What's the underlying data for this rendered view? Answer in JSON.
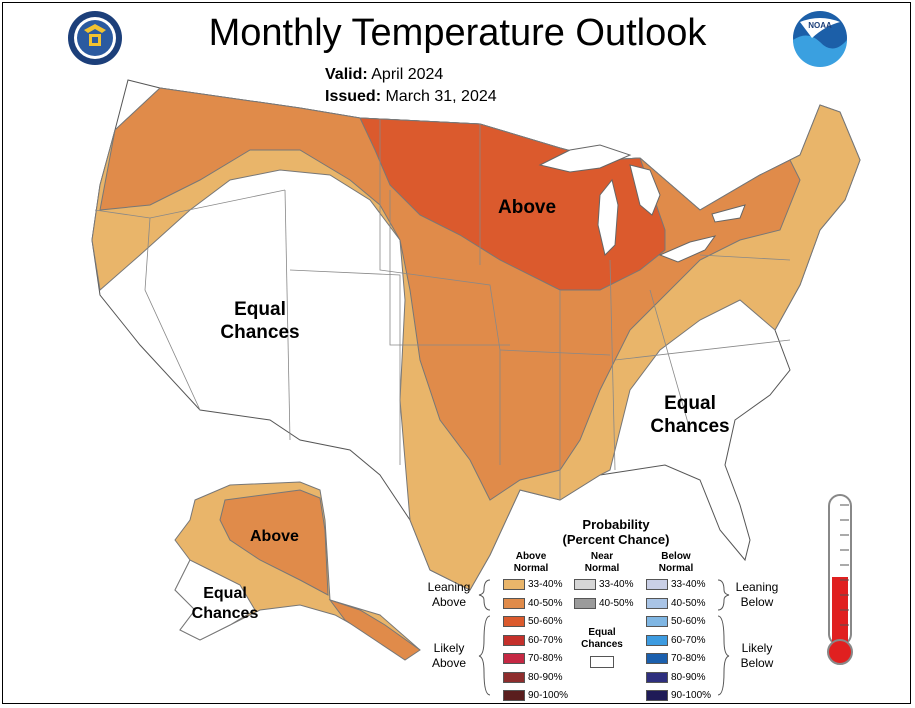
{
  "title": "Monthly Temperature Outlook",
  "valid_label": "Valid:",
  "valid_value": "April 2024",
  "issued_label": "Issued:",
  "issued_value": "March 31, 2024",
  "map_labels": {
    "above_conus": "Above",
    "equal_west": "Equal Chances",
    "equal_southeast": "Equal Chances",
    "above_alaska": "Above",
    "equal_alaska": "Equal Chances"
  },
  "colors": {
    "above_33_40": "#e9b56a",
    "above_40_50": "#e08b4a",
    "above_50_60": "#db5a2d",
    "above_60_70": "#c4302b",
    "above_70_80": "#c52843",
    "above_80_90": "#8e2d2d",
    "above_90_100": "#5a1e1e",
    "near_33_40": "#d6d6d6",
    "near_40_50": "#9b9b9b",
    "below_33_40": "#c9cfe6",
    "below_40_50": "#a9c4e6",
    "below_50_60": "#7fb6e3",
    "below_60_70": "#3d9be0",
    "below_70_80": "#1b5fad",
    "below_80_90": "#2e2f7e",
    "below_90_100": "#1f1b57"
  },
  "legend": {
    "title_line1": "Probability",
    "title_line2": "(Percent Chance)",
    "above_head": [
      "Above",
      "Normal"
    ],
    "near_head": [
      "Near",
      "Normal"
    ],
    "below_head": [
      "Below",
      "Normal"
    ],
    "equal_head": [
      "Equal",
      "Chances"
    ],
    "leaning_left": [
      "Leaning",
      "Above"
    ],
    "likely_left": [
      "Likely",
      "Above"
    ],
    "leaning_right": [
      "Leaning",
      "Below"
    ],
    "likely_right": [
      "Likely",
      "Below"
    ],
    "above_items": [
      "33-40%",
      "40-50%",
      "50-60%",
      "60-70%",
      "70-80%",
      "80-90%",
      "90-100%"
    ],
    "near_items": [
      "33-40%",
      "40-50%"
    ],
    "below_items": [
      "33-40%",
      "40-50%",
      "50-60%",
      "60-70%",
      "70-80%",
      "80-90%",
      "90-100%"
    ]
  },
  "logos": {
    "left": "doc-seal-icon",
    "right": "noaa-logo-icon",
    "right_text": "NOAA"
  }
}
